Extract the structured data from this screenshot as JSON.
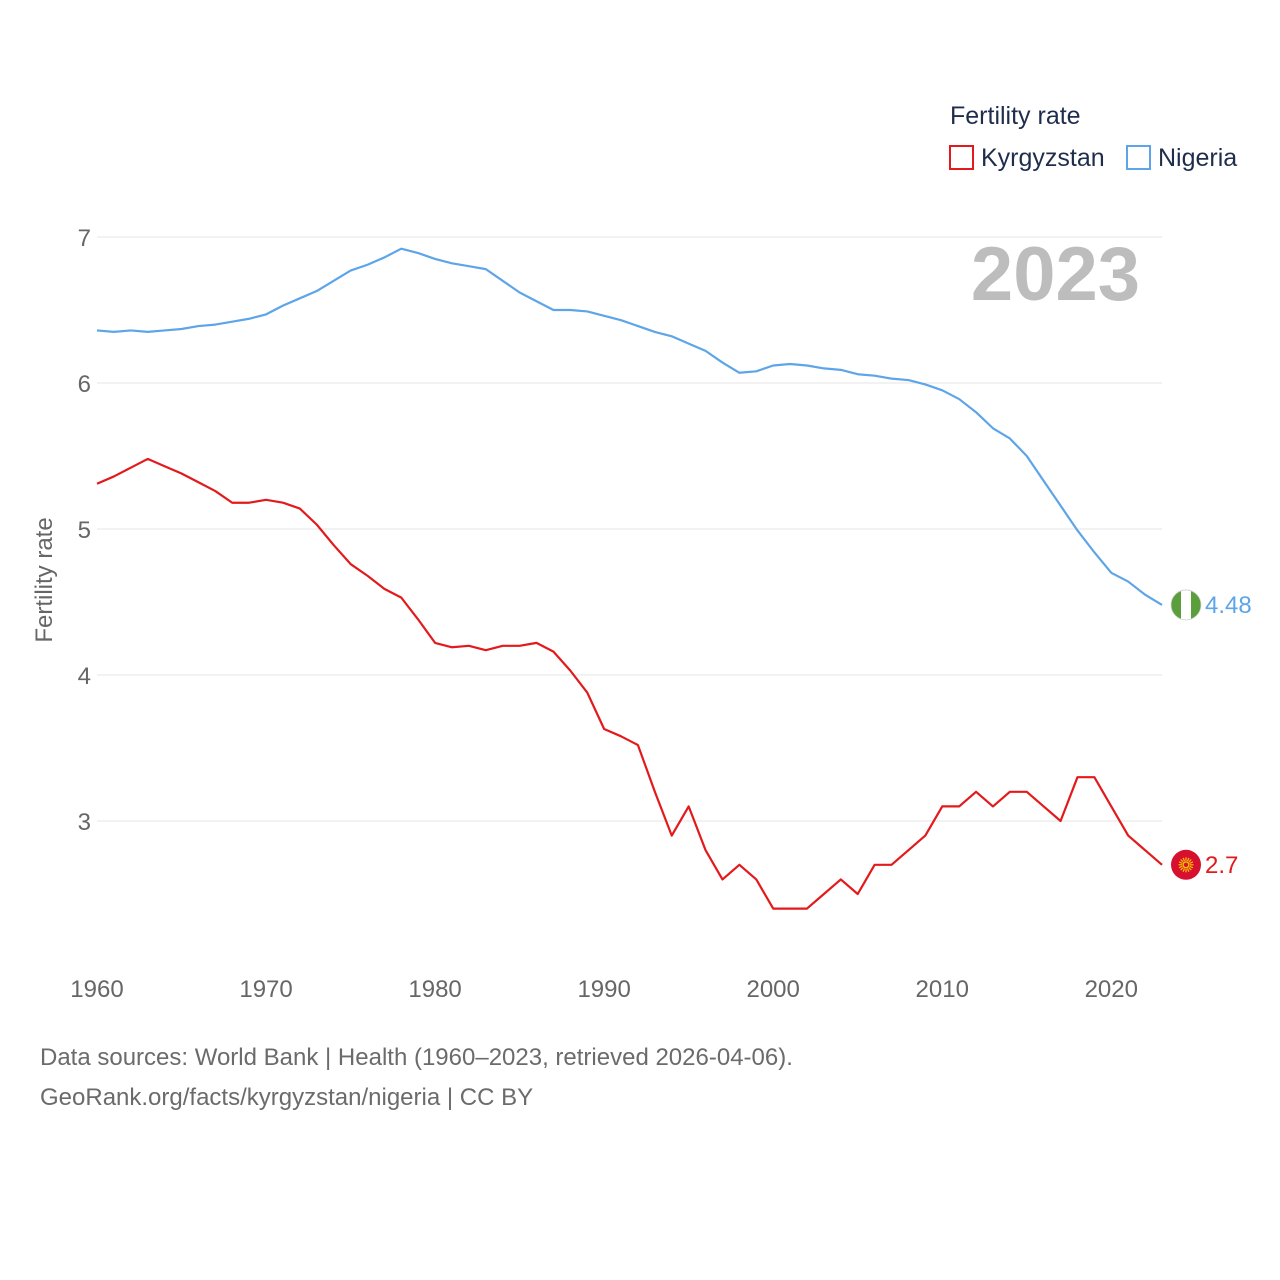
{
  "chart_data": {
    "type": "line",
    "legend_title": "Fertility rate",
    "year_label": "2023",
    "ylabel": "Fertility rate",
    "xlabel": "",
    "xlim": [
      1960,
      2023
    ],
    "ylim": [
      2.0,
      7.0
    ],
    "x_ticks": [
      "1960",
      "1970",
      "1980",
      "1990",
      "2000",
      "2010",
      "2020"
    ],
    "y_ticks": [
      "7",
      "6",
      "5",
      "4",
      "3"
    ],
    "x": [
      1960,
      1961,
      1962,
      1963,
      1964,
      1965,
      1966,
      1967,
      1968,
      1969,
      1970,
      1971,
      1972,
      1973,
      1974,
      1975,
      1976,
      1977,
      1978,
      1979,
      1980,
      1981,
      1982,
      1983,
      1984,
      1985,
      1986,
      1987,
      1988,
      1989,
      1990,
      1991,
      1992,
      1993,
      1994,
      1995,
      1996,
      1997,
      1998,
      1999,
      2000,
      2001,
      2002,
      2003,
      2004,
      2005,
      2006,
      2007,
      2008,
      2009,
      2010,
      2011,
      2012,
      2013,
      2014,
      2015,
      2016,
      2017,
      2018,
      2019,
      2020,
      2021,
      2022,
      2023
    ],
    "series": [
      {
        "name": "Kyrgyzstan",
        "color": "#e31a1c",
        "end_label": "2.7",
        "flag_icon": "kyrgyzstan-flag",
        "values": [
          5.31,
          5.36,
          5.42,
          5.48,
          5.43,
          5.38,
          5.32,
          5.26,
          5.18,
          5.18,
          5.2,
          5.18,
          5.14,
          5.03,
          4.89,
          4.76,
          4.68,
          4.59,
          4.53,
          4.38,
          4.22,
          4.19,
          4.2,
          4.17,
          4.2,
          4.2,
          4.22,
          4.16,
          4.03,
          3.88,
          3.63,
          3.58,
          3.52,
          3.2,
          2.9,
          3.1,
          2.8,
          2.6,
          2.7,
          2.6,
          2.4,
          2.4,
          2.4,
          2.5,
          2.6,
          2.5,
          2.7,
          2.7,
          2.8,
          2.9,
          3.1,
          3.1,
          3.2,
          3.1,
          3.2,
          3.2,
          3.1,
          3.0,
          3.3,
          3.3,
          3.1,
          2.9,
          2.8,
          2.7
        ]
      },
      {
        "name": "Nigeria",
        "color": "#5da5e8",
        "end_label": "4.48",
        "flag_icon": "nigeria-flag",
        "values": [
          6.36,
          6.35,
          6.36,
          6.35,
          6.36,
          6.37,
          6.39,
          6.4,
          6.42,
          6.44,
          6.47,
          6.53,
          6.58,
          6.63,
          6.7,
          6.77,
          6.81,
          6.86,
          6.92,
          6.89,
          6.85,
          6.82,
          6.8,
          6.78,
          6.7,
          6.62,
          6.56,
          6.5,
          6.5,
          6.49,
          6.46,
          6.43,
          6.39,
          6.35,
          6.32,
          6.27,
          6.22,
          6.14,
          6.07,
          6.08,
          6.12,
          6.13,
          6.12,
          6.1,
          6.09,
          6.06,
          6.05,
          6.03,
          6.02,
          5.99,
          5.95,
          5.89,
          5.8,
          5.69,
          5.62,
          5.5,
          5.33,
          5.16,
          4.99,
          4.84,
          4.7,
          4.64,
          4.55,
          4.48
        ]
      }
    ]
  },
  "footer": {
    "line1": "Data sources: World Bank | Health (1960–2023, retrieved 2026-04-06).",
    "line2": "GeoRank.org/facts/kyrgyzstan/nigeria | CC BY"
  }
}
